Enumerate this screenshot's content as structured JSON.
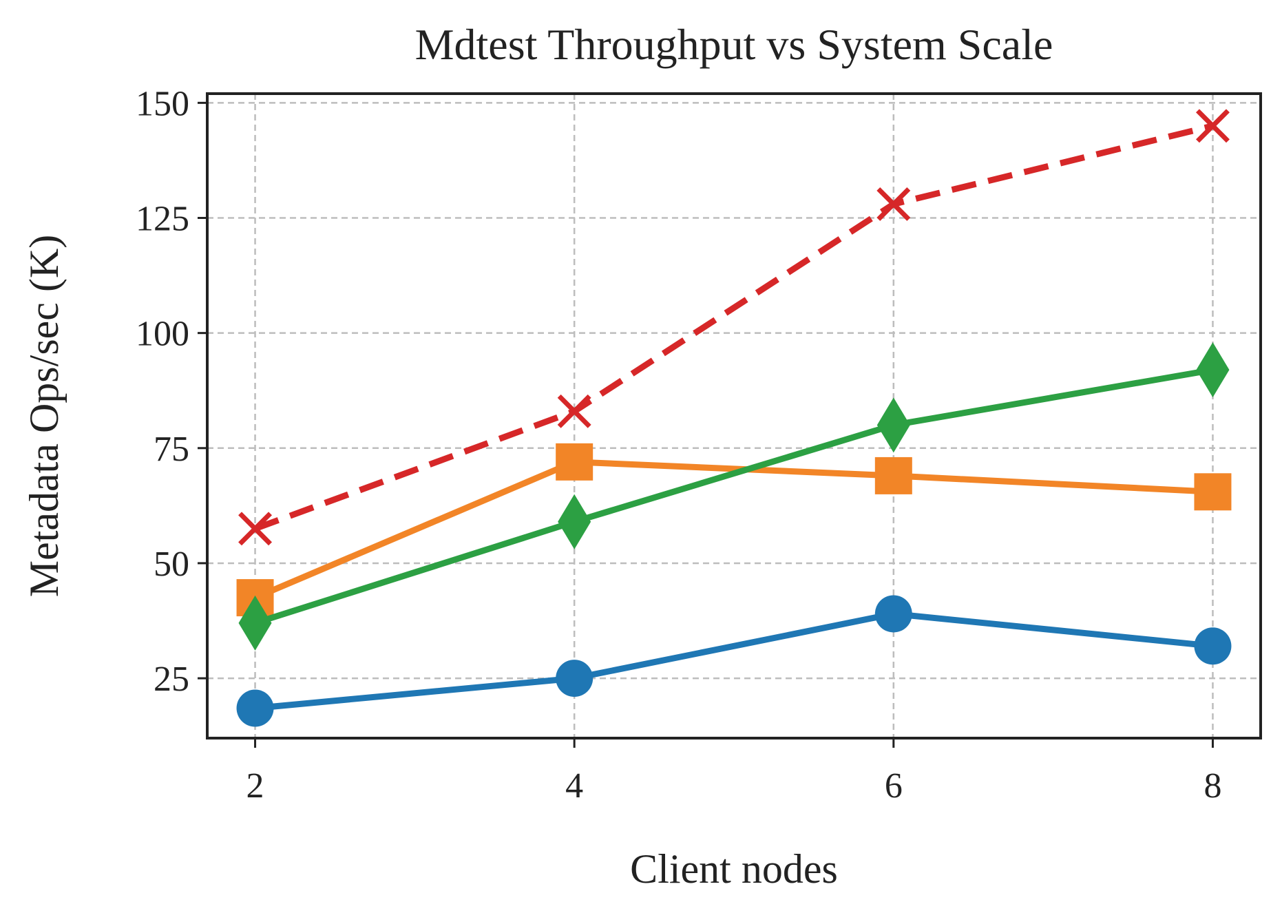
{
  "chart_data": {
    "type": "line",
    "title": "Mdtest Throughput vs System Scale",
    "xlabel": "Client nodes",
    "ylabel": "Metadata Ops/sec (K)",
    "x": [
      2,
      4,
      6,
      8
    ],
    "xticks": [
      "2",
      "4",
      "6",
      "8"
    ],
    "yticks": [
      "25",
      "50",
      "75",
      "100",
      "125",
      "150"
    ],
    "xlim": [
      1.7,
      8.3
    ],
    "ylim": [
      12,
      152
    ],
    "grid": true,
    "series": [
      {
        "values": [
          18.5,
          25,
          39,
          32
        ],
        "color": "#1f77b4",
        "marker": "circle",
        "linestyle": "solid"
      },
      {
        "values": [
          42.5,
          72,
          69,
          65.5
        ],
        "color": "#f28527",
        "marker": "square",
        "linestyle": "solid"
      },
      {
        "values": [
          37,
          59,
          80,
          92
        ],
        "color": "#2ca043",
        "marker": "diamond",
        "linestyle": "solid"
      },
      {
        "values": [
          57.5,
          83,
          128,
          145
        ],
        "color": "#d62728",
        "marker": "x",
        "linestyle": "dashed"
      }
    ]
  }
}
